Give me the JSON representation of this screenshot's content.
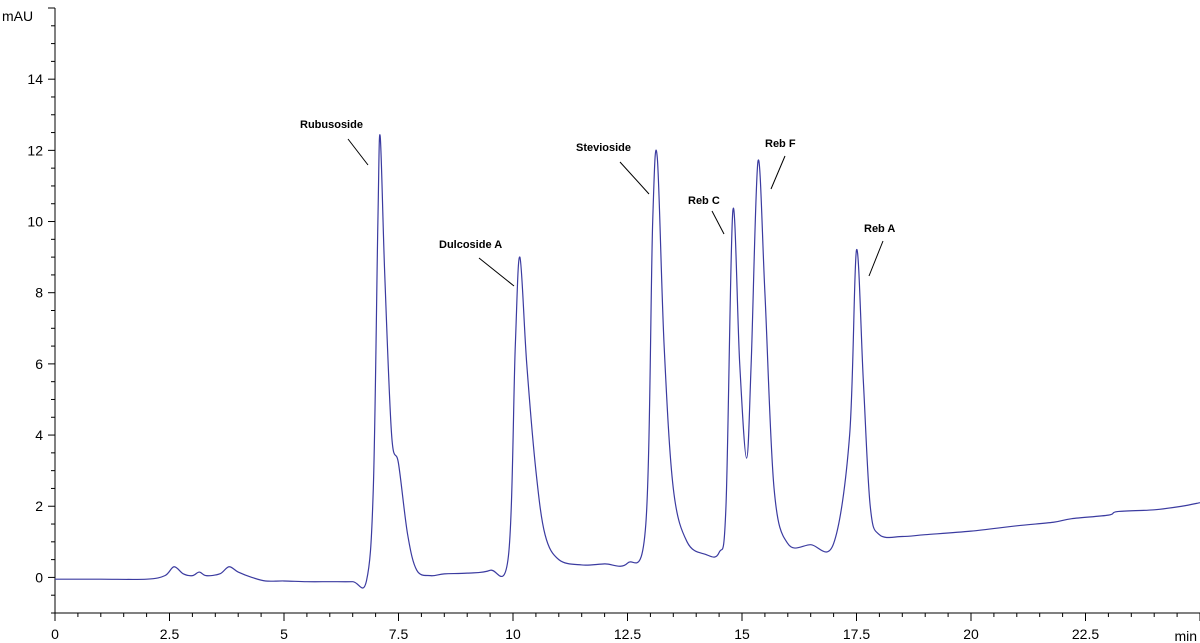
{
  "chart_data": {
    "type": "line",
    "title": "",
    "xlabel": "min",
    "ylabel": "mAU",
    "xlim": [
      0,
      25
    ],
    "ylim": [
      -1,
      16
    ],
    "x_ticks": [
      0,
      2.5,
      5,
      7.5,
      10,
      12.5,
      15,
      17.5,
      20,
      22.5
    ],
    "x_tick_labels": [
      "0",
      "2.5",
      "5",
      "7.5",
      "10",
      "12.5",
      "15",
      "17.5",
      "20",
      "22.5"
    ],
    "y_ticks": [
      0,
      2,
      4,
      6,
      8,
      10,
      12,
      14
    ],
    "y_tick_labels": [
      "0",
      "2",
      "4",
      "6",
      "8",
      "10",
      "12",
      "14"
    ],
    "line_color": "#3b3ba0",
    "grid": false,
    "series": [
      {
        "x": [
          0,
          1,
          2,
          2.4,
          2.6,
          2.8,
          3.0,
          3.15,
          3.3,
          3.6,
          3.8,
          4.0,
          4.3,
          4.6,
          5.0,
          5.5,
          6.0,
          6.5,
          6.8,
          6.95,
          7.05,
          7.1,
          7.2,
          7.35,
          7.5,
          7.7,
          7.9,
          8.2,
          8.5,
          9.0,
          9.5,
          9.9,
          10.05,
          10.15,
          10.3,
          10.5,
          10.7,
          11.0,
          11.5,
          12.0,
          12.5,
          12.9,
          13.05,
          13.15,
          13.3,
          13.5,
          13.8,
          14.2,
          14.5,
          14.65,
          14.8,
          14.95,
          15.1,
          15.2,
          15.35,
          15.5,
          15.7,
          16.0,
          16.5,
          17.0,
          17.35,
          17.5,
          17.65,
          17.8,
          18.0,
          18.5,
          19.0,
          20.0,
          21.0,
          21.8,
          22.2,
          23.0,
          23.2,
          24.0,
          24.6,
          25.0
        ],
        "y": [
          -0.05,
          -0.05,
          -0.05,
          0.05,
          0.3,
          0.1,
          0.05,
          0.15,
          0.05,
          0.1,
          0.3,
          0.15,
          0.0,
          -0.1,
          -0.1,
          -0.12,
          -0.12,
          -0.12,
          -0.1,
          2.5,
          10.0,
          12.4,
          8.5,
          4.0,
          3.2,
          1.2,
          0.2,
          0.05,
          0.1,
          0.12,
          0.2,
          0.6,
          6.5,
          9.0,
          6.0,
          3.0,
          1.2,
          0.5,
          0.35,
          0.38,
          0.4,
          1.5,
          10.0,
          11.8,
          6.5,
          2.5,
          1.0,
          0.65,
          0.7,
          2.0,
          10.3,
          6.0,
          3.35,
          6.0,
          11.7,
          8.0,
          2.5,
          0.95,
          0.92,
          0.95,
          4.0,
          9.2,
          5.5,
          2.0,
          1.2,
          1.15,
          1.2,
          1.3,
          1.45,
          1.55,
          1.65,
          1.75,
          1.85,
          1.9,
          2.0,
          2.1
        ]
      }
    ],
    "annotations": [
      {
        "text": "Rubusoside",
        "x": 7.1,
        "y": 12.4
      },
      {
        "text": "Dulcoside A",
        "x": 10.15,
        "y": 9.0
      },
      {
        "text": "Stevioside",
        "x": 13.15,
        "y": 11.8
      },
      {
        "text": "Reb C",
        "x": 14.8,
        "y": 10.3
      },
      {
        "text": "Reb F",
        "x": 15.35,
        "y": 11.7
      },
      {
        "text": "Reb A",
        "x": 17.5,
        "y": 9.2
      }
    ]
  }
}
